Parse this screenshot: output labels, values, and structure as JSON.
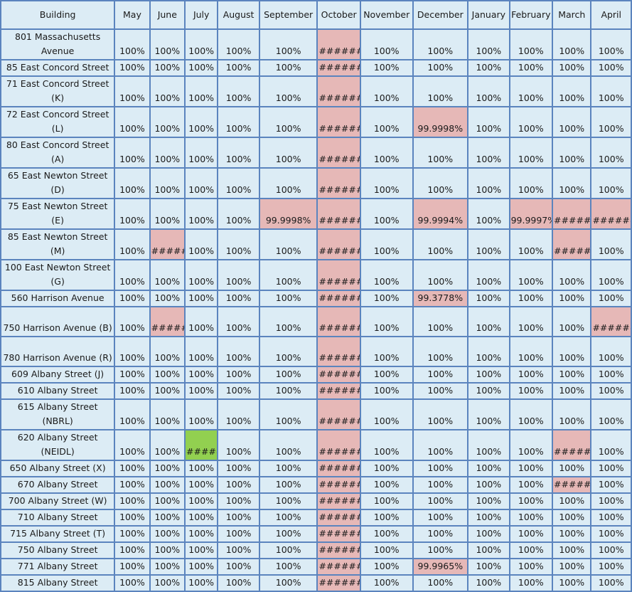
{
  "table": {
    "headers": [
      "Building",
      "May",
      "June",
      "July",
      "August",
      "September",
      "October",
      "November",
      "December",
      "January",
      "February",
      "March",
      "April"
    ],
    "colors": {
      "grid_bg": "#dcecf5",
      "border": "#5b84be",
      "red": "#e6b8b7",
      "green": "#92d050"
    },
    "rows": [
      {
        "building": "801 Massachusetts Avenue",
        "cells": [
          "100%",
          "100%",
          "100%",
          "100%",
          "100%",
          "#######",
          "100%",
          "100%",
          "100%",
          "100%",
          "100%",
          "100%"
        ],
        "red": [
          5
        ],
        "green": []
      },
      {
        "building": "85 East Concord Street",
        "cells": [
          "100%",
          "100%",
          "100%",
          "100%",
          "100%",
          "#######",
          "100%",
          "100%",
          "100%",
          "100%",
          "100%",
          "100%"
        ],
        "red": [
          5
        ],
        "green": []
      },
      {
        "building": "71 East Concord Street (K)",
        "cells": [
          "100%",
          "100%",
          "100%",
          "100%",
          "100%",
          "#######",
          "100%",
          "100%",
          "100%",
          "100%",
          "100%",
          "100%"
        ],
        "red": [
          5
        ],
        "green": []
      },
      {
        "building": "72 East Concord Street (L)",
        "cells": [
          "100%",
          "100%",
          "100%",
          "100%",
          "100%",
          "#######",
          "100%",
          "99.9998%",
          "100%",
          "100%",
          "100%",
          "100%"
        ],
        "red": [
          5,
          7
        ],
        "green": []
      },
      {
        "building": "80 East Concord Street (A)",
        "cells": [
          "100%",
          "100%",
          "100%",
          "100%",
          "100%",
          "#######",
          "100%",
          "100%",
          "100%",
          "100%",
          "100%",
          "100%"
        ],
        "red": [
          5
        ],
        "green": []
      },
      {
        "building": "65 East Newton Street (D)",
        "cells": [
          "100%",
          "100%",
          "100%",
          "100%",
          "100%",
          "#######",
          "100%",
          "100%",
          "100%",
          "100%",
          "100%",
          "100%"
        ],
        "red": [
          5
        ],
        "green": []
      },
      {
        "building": "75 East Newton Street (E)",
        "cells": [
          "100%",
          "100%",
          "100%",
          "100%",
          "99.9998%",
          "#######",
          "100%",
          "99.9994%",
          "100%",
          "99.9997%",
          "#######",
          "#######"
        ],
        "red": [
          4,
          5,
          7,
          9,
          10,
          11
        ],
        "green": []
      },
      {
        "building": "85 East Newton Street (M)",
        "cells": [
          "100%",
          "######",
          "100%",
          "100%",
          "100%",
          "#######",
          "100%",
          "100%",
          "100%",
          "100%",
          "######",
          "100%"
        ],
        "red": [
          1,
          5,
          10
        ],
        "green": []
      },
      {
        "building": "100 East Newton Street (G)",
        "cells": [
          "100%",
          "100%",
          "100%",
          "100%",
          "100%",
          "#######",
          "100%",
          "100%",
          "100%",
          "100%",
          "100%",
          "100%"
        ],
        "red": [
          5
        ],
        "green": []
      },
      {
        "building": "560 Harrison Avenue",
        "cells": [
          "100%",
          "100%",
          "100%",
          "100%",
          "100%",
          "#######",
          "100%",
          "99.3778%",
          "100%",
          "100%",
          "100%",
          "100%"
        ],
        "red": [
          5,
          7
        ],
        "green": []
      },
      {
        "building": "750 Harrison Avenue (B)",
        "cells": [
          "100%",
          "######",
          "100%",
          "100%",
          "100%",
          "#######",
          "100%",
          "100%",
          "100%",
          "100%",
          "100%",
          "#######"
        ],
        "red": [
          1,
          5,
          11
        ],
        "green": []
      },
      {
        "building": "780 Harrison Avenue (R)",
        "cells": [
          "100%",
          "100%",
          "100%",
          "100%",
          "100%",
          "#######",
          "100%",
          "100%",
          "100%",
          "100%",
          "100%",
          "100%"
        ],
        "red": [
          5
        ],
        "green": []
      },
      {
        "building": "609 Albany Street (J)",
        "cells": [
          "100%",
          "100%",
          "100%",
          "100%",
          "100%",
          "#######",
          "100%",
          "100%",
          "100%",
          "100%",
          "100%",
          "100%"
        ],
        "red": [
          5
        ],
        "green": []
      },
      {
        "building": "610 Albany Street",
        "cells": [
          "100%",
          "100%",
          "100%",
          "100%",
          "100%",
          "#######",
          "100%",
          "100%",
          "100%",
          "100%",
          "100%",
          "100%"
        ],
        "red": [
          5
        ],
        "green": []
      },
      {
        "building": "615 Albany Street (NBRL)",
        "cells": [
          "100%",
          "100%",
          "100%",
          "100%",
          "100%",
          "#######",
          "100%",
          "100%",
          "100%",
          "100%",
          "100%",
          "100%"
        ],
        "red": [
          5
        ],
        "green": []
      },
      {
        "building": "620 Albany Street (NEIDL)",
        "cells": [
          "100%",
          "100%",
          "#####",
          "100%",
          "100%",
          "#######",
          "100%",
          "100%",
          "100%",
          "100%",
          "######",
          "100%"
        ],
        "red": [
          5,
          10
        ],
        "green": [
          2
        ]
      },
      {
        "building": "650 Albany Street (X)",
        "cells": [
          "100%",
          "100%",
          "100%",
          "100%",
          "100%",
          "#######",
          "100%",
          "100%",
          "100%",
          "100%",
          "100%",
          "100%"
        ],
        "red": [
          5
        ],
        "green": []
      },
      {
        "building": "670 Albany Street",
        "cells": [
          "100%",
          "100%",
          "100%",
          "100%",
          "100%",
          "#######",
          "100%",
          "100%",
          "100%",
          "100%",
          "######",
          "100%"
        ],
        "red": [
          5,
          10
        ],
        "green": []
      },
      {
        "building": "700 Albany Street (W)",
        "cells": [
          "100%",
          "100%",
          "100%",
          "100%",
          "100%",
          "#######",
          "100%",
          "100%",
          "100%",
          "100%",
          "100%",
          "100%"
        ],
        "red": [
          5
        ],
        "green": []
      },
      {
        "building": "710 Albany Street",
        "cells": [
          "100%",
          "100%",
          "100%",
          "100%",
          "100%",
          "#######",
          "100%",
          "100%",
          "100%",
          "100%",
          "100%",
          "100%"
        ],
        "red": [
          5
        ],
        "green": []
      },
      {
        "building": "715 Albany Street (T)",
        "cells": [
          "100%",
          "100%",
          "100%",
          "100%",
          "100%",
          "#######",
          "100%",
          "100%",
          "100%",
          "100%",
          "100%",
          "100%"
        ],
        "red": [
          5
        ],
        "green": []
      },
      {
        "building": "750 Albany Street",
        "cells": [
          "100%",
          "100%",
          "100%",
          "100%",
          "100%",
          "#######",
          "100%",
          "100%",
          "100%",
          "100%",
          "100%",
          "100%"
        ],
        "red": [
          5
        ],
        "green": []
      },
      {
        "building": "771 Albany Street",
        "cells": [
          "100%",
          "100%",
          "100%",
          "100%",
          "100%",
          "#######",
          "100%",
          "99.9965%",
          "100%",
          "100%",
          "100%",
          "100%"
        ],
        "red": [
          5,
          7
        ],
        "green": []
      },
      {
        "building": "815 Albany Street",
        "cells": [
          "100%",
          "100%",
          "100%",
          "100%",
          "100%",
          "#######",
          "100%",
          "100%",
          "100%",
          "100%",
          "100%",
          "100%"
        ],
        "red": [
          5
        ],
        "green": []
      }
    ]
  }
}
